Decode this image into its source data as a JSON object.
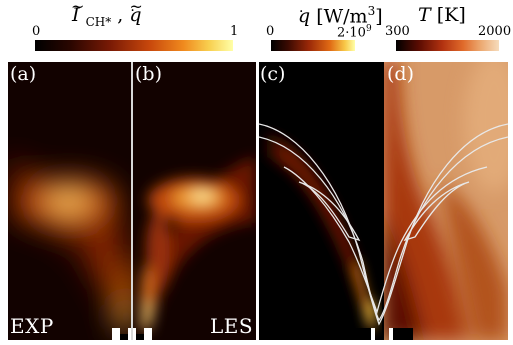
{
  "colorbars": {
    "left": {
      "title_main": "I",
      "title_sub": "CH*",
      "title_sep": " , ",
      "title_second": "q",
      "tick_min": "0",
      "tick_max": "1"
    },
    "middle": {
      "title_q": "q",
      "title_unit": " [W/m",
      "title_exp": "3",
      "title_close": "]",
      "tick_min": "0",
      "tick_max": "2·10",
      "tick_max_exp": "9"
    },
    "right": {
      "title_t": "T",
      "title_unit": " [K]",
      "tick_min": "300",
      "tick_max": "2000"
    }
  },
  "panels": {
    "a": "(a)",
    "b": "(b)",
    "c": "(c)",
    "d": "(d)"
  },
  "labels": {
    "exp": "EXP",
    "les": "LES"
  },
  "colors": {
    "hot_low": "#000000",
    "hot_mid": "#c0300a",
    "hot_high": "#ffffa0",
    "temp_low": "#000000",
    "temp_high": "#f2d9b8",
    "contour": "#e8e8e8"
  }
}
